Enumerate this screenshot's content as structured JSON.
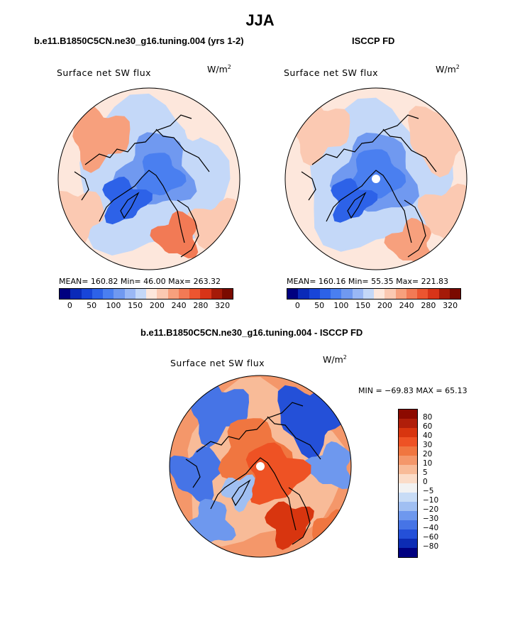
{
  "title": "JJA",
  "panels": [
    {
      "title": "b.e11.B1850C5CN.ne30_g16.tuning.004 (yrs 1-2)",
      "label": "Surface net SW flux",
      "unit": "W/m",
      "unit_sup": "2",
      "stats": "MEAN= 160.82   Min=   46.00   Max= 263.32"
    },
    {
      "title": "ISCCP FD",
      "label": "Surface net SW flux",
      "unit": "W/m",
      "unit_sup": "2",
      "stats": "MEAN= 160.16   Min=   55.35   Max= 221.83"
    },
    {
      "title": "b.e11.B1850C5CN.ne30_g16.tuning.004 - ISCCP FD",
      "label": "Surface net SW flux",
      "unit": "W/m",
      "unit_sup": "2",
      "stats": "MIN = −69.83  MAX =   65.13"
    }
  ],
  "colorbar_abs": {
    "colors": [
      "#000080",
      "#0a2ab8",
      "#1845d8",
      "#2d62e8",
      "#4a7ff0",
      "#7099f0",
      "#9ab8f5",
      "#c4d8f8",
      "#fde7dc",
      "#fbc9b2",
      "#f7a07d",
      "#f27a55",
      "#ec5530",
      "#d83418",
      "#a51a08",
      "#7a0a00"
    ],
    "ticks": [
      {
        "pos": 1,
        "label": "0"
      },
      {
        "pos": 3,
        "label": "50"
      },
      {
        "pos": 5,
        "label": "100"
      },
      {
        "pos": 7,
        "label": "150"
      },
      {
        "pos": 9,
        "label": "200"
      },
      {
        "pos": 11,
        "label": "240"
      },
      {
        "pos": 13,
        "label": "280"
      },
      {
        "pos": 15,
        "label": "320"
      }
    ]
  },
  "colorbar_diff": {
    "colors": [
      "#8c0a00",
      "#b01e0a",
      "#d8350f",
      "#ee5224",
      "#f07640",
      "#f4976a",
      "#f8bb98",
      "#fbdcc8",
      "#f2f2f2",
      "#c8dcf6",
      "#a0bff2",
      "#6e98ee",
      "#4674e6",
      "#2450d8",
      "#0c2cb4",
      "#000080"
    ],
    "labels": [
      "80",
      "60",
      "40",
      "30",
      "20",
      "10",
      "5",
      "0",
      "−5",
      "−10",
      "−20",
      "−30",
      "−40",
      "−60",
      "−80"
    ]
  },
  "chart_data": [
    {
      "type": "heatmap",
      "title": "b.e11.B1850C5CN.ne30_g16.tuning.004 (yrs 1-2)",
      "subtitle": "Surface net SW flux",
      "units": "W/m2",
      "season": "JJA",
      "mean": 160.82,
      "min": 46.0,
      "max": 263.32,
      "colorbar_levels": [
        0,
        50,
        100,
        150,
        200,
        240,
        280,
        320
      ]
    },
    {
      "type": "heatmap",
      "title": "ISCCP FD",
      "subtitle": "Surface net SW flux",
      "units": "W/m2",
      "season": "JJA",
      "mean": 160.16,
      "min": 55.35,
      "max": 221.83,
      "colorbar_levels": [
        0,
        50,
        100,
        150,
        200,
        240,
        280,
        320
      ]
    },
    {
      "type": "heatmap",
      "title": "b.e11.B1850C5CN.ne30_g16.tuning.004 - ISCCP FD",
      "subtitle": "Surface net SW flux",
      "units": "W/m2",
      "min": -69.83,
      "max": 65.13,
      "colorbar_levels": [
        80,
        60,
        40,
        30,
        20,
        10,
        5,
        0,
        -5,
        -10,
        -20,
        -30,
        -40,
        -60,
        -80
      ]
    }
  ]
}
